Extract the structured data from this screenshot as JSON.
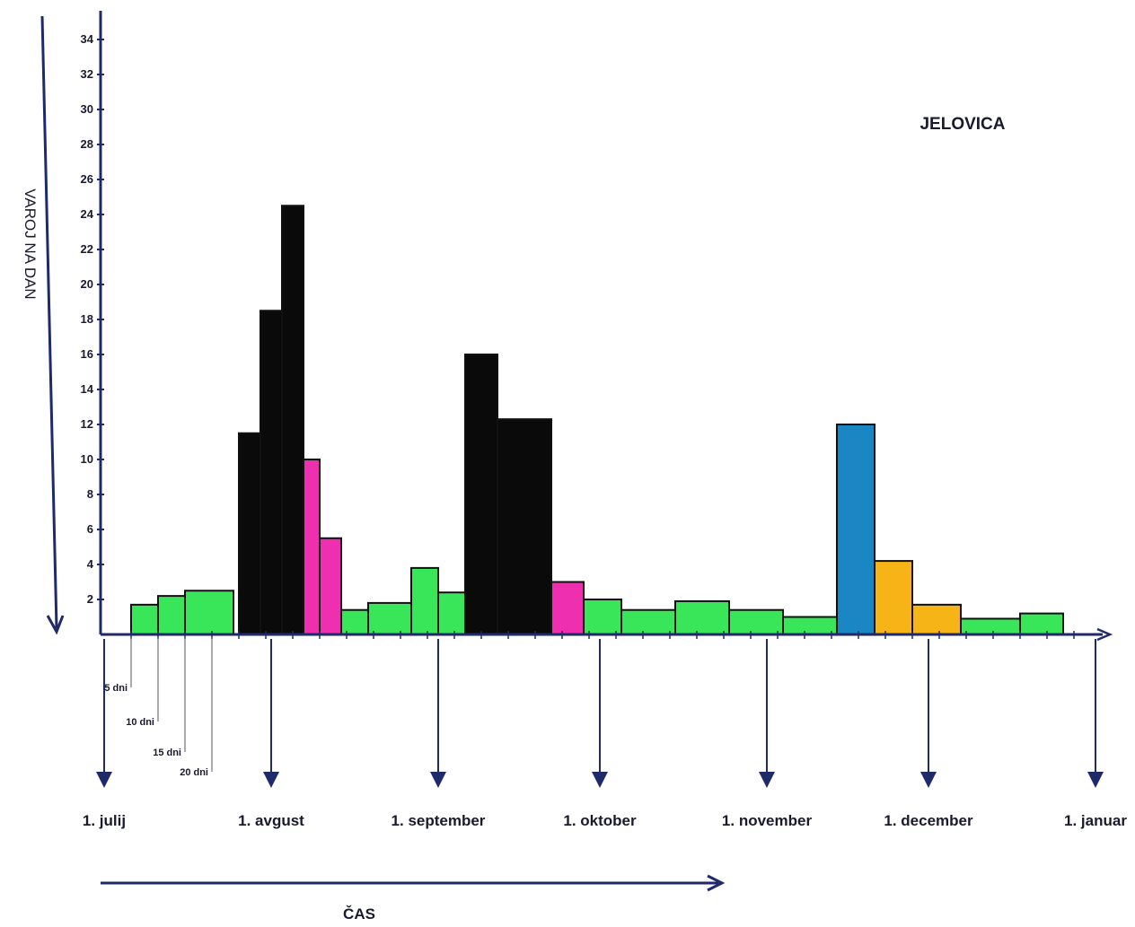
{
  "chart_data": {
    "type": "bar",
    "title": "JELOVICA",
    "ylabel": "VAROJ NA DAN",
    "xlabel": "ČAS",
    "ylim": [
      0,
      35
    ],
    "y_ticks": [
      "2",
      "4",
      "6",
      "8",
      "10",
      "12",
      "14",
      "16",
      "18",
      "20",
      "22",
      "24",
      "26",
      "28",
      "30",
      "32",
      "34"
    ],
    "month_labels": [
      "1. julij",
      "1. avgust",
      "1. september",
      "1. oktober",
      "1. november",
      "1. december",
      "1. januar"
    ],
    "day_labels": [
      "5 dni",
      "10 dni",
      "15 dni",
      "20 dni"
    ],
    "colors": {
      "green": "#39e65a",
      "black": "#0a0a0a",
      "pink": "#ee2fb0",
      "blue": "#1b86c4",
      "orange": "#f6b417",
      "axis": "#1f2a6b"
    },
    "bars": [
      {
        "start_day": 5,
        "end_day": 10,
        "value": 1.7,
        "color": "green"
      },
      {
        "start_day": 10,
        "end_day": 15,
        "value": 2.2,
        "color": "green"
      },
      {
        "start_day": 15,
        "end_day": 24,
        "value": 2.5,
        "color": "green"
      },
      {
        "start_day": 25,
        "end_day": 29,
        "value": 11.5,
        "color": "black"
      },
      {
        "start_day": 29,
        "end_day": 33,
        "value": 18.5,
        "color": "black"
      },
      {
        "start_day": 33,
        "end_day": 37,
        "value": 24.5,
        "color": "black"
      },
      {
        "start_day": 37,
        "end_day": 40,
        "value": 10,
        "color": "pink"
      },
      {
        "start_day": 40,
        "end_day": 44,
        "value": 5.5,
        "color": "pink"
      },
      {
        "start_day": 44,
        "end_day": 49,
        "value": 1.4,
        "color": "green"
      },
      {
        "start_day": 49,
        "end_day": 57,
        "value": 1.8,
        "color": "green"
      },
      {
        "start_day": 57,
        "end_day": 62,
        "value": 3.8,
        "color": "green"
      },
      {
        "start_day": 62,
        "end_day": 67,
        "value": 2.4,
        "color": "green"
      },
      {
        "start_day": 67,
        "end_day": 73,
        "value": 16,
        "color": "black"
      },
      {
        "start_day": 73,
        "end_day": 83,
        "value": 12.3,
        "color": "black"
      },
      {
        "start_day": 83,
        "end_day": 89,
        "value": 3,
        "color": "pink"
      },
      {
        "start_day": 89,
        "end_day": 96,
        "value": 2,
        "color": "green"
      },
      {
        "start_day": 96,
        "end_day": 106,
        "value": 1.4,
        "color": "green"
      },
      {
        "start_day": 106,
        "end_day": 116,
        "value": 1.9,
        "color": "green"
      },
      {
        "start_day": 116,
        "end_day": 126,
        "value": 1.4,
        "color": "green"
      },
      {
        "start_day": 126,
        "end_day": 136,
        "value": 1,
        "color": "green"
      },
      {
        "start_day": 136,
        "end_day": 143,
        "value": 12,
        "color": "blue"
      },
      {
        "start_day": 143,
        "end_day": 150,
        "value": 4.2,
        "color": "orange"
      },
      {
        "start_day": 150,
        "end_day": 159,
        "value": 1.7,
        "color": "orange"
      },
      {
        "start_day": 159,
        "end_day": 170,
        "value": 0.9,
        "color": "green"
      },
      {
        "start_day": 170,
        "end_day": 178,
        "value": 1.2,
        "color": "green"
      }
    ]
  }
}
